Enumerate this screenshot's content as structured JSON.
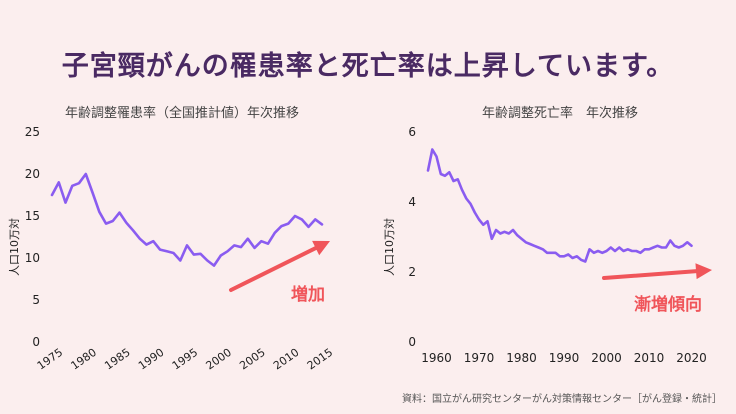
{
  "headline": "子宮頸がんの罹患率と死亡率は上昇しています。",
  "source": "資料：国立がん研究センターがん対策情報センター［がん登録・統計］",
  "chart_data": [
    {
      "type": "line",
      "title": "年齢調整罹患率（全国推計値）年次推移",
      "ylabel": "人口10万対",
      "xlim": [
        1975,
        2015
      ],
      "ylim": [
        0,
        25
      ],
      "xticks": [
        1975,
        1980,
        1985,
        1990,
        1995,
        2000,
        2005,
        2010,
        2015
      ],
      "yticks": [
        0,
        5,
        10,
        15,
        20,
        25
      ],
      "annotation": "増加",
      "color": "#8a5cf0",
      "series": [
        {
          "x": [
            1975,
            1976,
            1977,
            1978,
            1979,
            1980,
            1981,
            1982,
            1983,
            1984,
            1985,
            1986,
            1987,
            1988,
            1989,
            1990,
            1991,
            1992,
            1993,
            1994,
            1995,
            1996,
            1997,
            1998,
            1999,
            2000,
            2001,
            2002,
            2003,
            2004,
            2005,
            2006,
            2007,
            2008,
            2009,
            2010,
            2011,
            2012,
            2013,
            2014,
            2015
          ],
          "y": [
            17.5,
            19.0,
            16.6,
            18.6,
            18.9,
            20.0,
            17.8,
            15.5,
            14.1,
            14.4,
            15.4,
            14.2,
            13.3,
            12.3,
            11.6,
            12.0,
            11.0,
            10.8,
            10.6,
            9.7,
            11.5,
            10.4,
            10.5,
            9.7,
            9.1,
            10.3,
            10.8,
            11.5,
            11.3,
            12.3,
            11.2,
            12.0,
            11.7,
            13.0,
            13.8,
            14.1,
            15.0,
            14.6,
            13.7,
            14.6,
            14.0
          ]
        }
      ]
    },
    {
      "type": "line",
      "title": "年齢調整死亡率　年次推移",
      "ylabel": "人口10万対",
      "xlim": [
        1958,
        2022
      ],
      "ylim": [
        0,
        6
      ],
      "xticks": [
        1960,
        1970,
        1980,
        1990,
        2000,
        2010,
        2020
      ],
      "yticks": [
        0,
        2,
        4,
        6
      ],
      "annotation": "漸増傾向",
      "color": "#8a5cf0",
      "series": [
        {
          "x": [
            1958,
            1959,
            1960,
            1961,
            1962,
            1963,
            1964,
            1965,
            1966,
            1967,
            1968,
            1969,
            1970,
            1971,
            1972,
            1973,
            1974,
            1975,
            1976,
            1977,
            1978,
            1979,
            1980,
            1981,
            1982,
            1983,
            1984,
            1985,
            1986,
            1987,
            1988,
            1989,
            1990,
            1991,
            1992,
            1993,
            1994,
            1995,
            1996,
            1997,
            1998,
            1999,
            2000,
            2001,
            2002,
            2003,
            2004,
            2005,
            2006,
            2007,
            2008,
            2009,
            2010,
            2011,
            2012,
            2013,
            2014,
            2015,
            2016,
            2017,
            2018,
            2019,
            2020
          ],
          "y": [
            4.9,
            5.5,
            5.3,
            4.8,
            4.75,
            4.85,
            4.6,
            4.65,
            4.35,
            4.1,
            3.95,
            3.7,
            3.5,
            3.35,
            3.45,
            2.95,
            3.2,
            3.1,
            3.15,
            3.1,
            3.2,
            3.05,
            2.95,
            2.85,
            2.8,
            2.75,
            2.7,
            2.65,
            2.55,
            2.55,
            2.55,
            2.45,
            2.45,
            2.5,
            2.4,
            2.45,
            2.35,
            2.3,
            2.65,
            2.55,
            2.6,
            2.55,
            2.6,
            2.7,
            2.6,
            2.7,
            2.6,
            2.65,
            2.6,
            2.6,
            2.55,
            2.65,
            2.65,
            2.7,
            2.75,
            2.7,
            2.7,
            2.9,
            2.75,
            2.7,
            2.75,
            2.85,
            2.75
          ]
        }
      ]
    }
  ]
}
